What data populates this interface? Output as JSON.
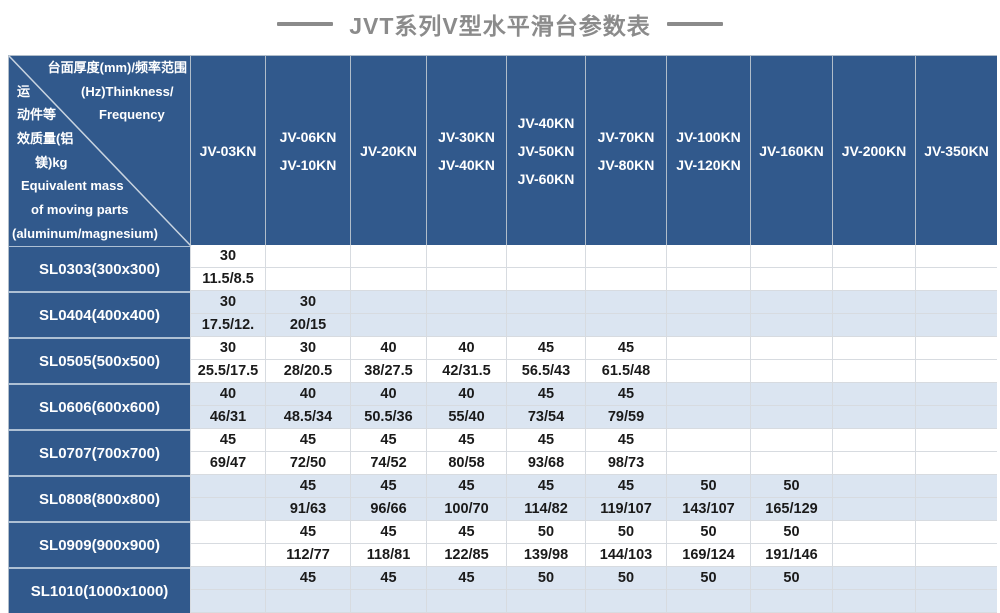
{
  "title": {
    "text": "JVT系列V型水平滑台参数表"
  },
  "colors": {
    "header_blue": "#31598c",
    "row_alt_blue": "#dbe5f1",
    "grid_line": "#d7dbe0",
    "title_gray": "#8b8b8b",
    "text_dark": "#1a1a1a"
  },
  "table": {
    "corner_lines": [
      {
        "left": "",
        "right": "台面厚度(mm)/频率范围"
      },
      {
        "left": "运",
        "right": "(Hz)Thinkness/"
      },
      {
        "left": "动件等",
        "right": "Frequency"
      },
      {
        "left": "效质量(铝",
        "right": ""
      },
      {
        "left": "镁)kg",
        "right": ""
      },
      {
        "left": "Equivalent mass",
        "right": ""
      },
      {
        "left": "of moving parts",
        "right": ""
      },
      {
        "left": "(aluminum/magnesium)",
        "right": ""
      }
    ],
    "columns": [
      {
        "labels": [
          "JV-03KN"
        ]
      },
      {
        "labels": [
          "JV-06KN",
          "JV-10KN"
        ]
      },
      {
        "labels": [
          "JV-20KN"
        ]
      },
      {
        "labels": [
          "JV-30KN",
          "JV-40KN"
        ]
      },
      {
        "labels": [
          "JV-40KN",
          "JV-50KN",
          "JV-60KN"
        ]
      },
      {
        "labels": [
          "JV-70KN",
          "JV-80KN"
        ]
      },
      {
        "labels": [
          "JV-100KN",
          "JV-120KN"
        ]
      },
      {
        "labels": [
          "JV-160KN"
        ]
      },
      {
        "labels": [
          "JV-200KN"
        ]
      },
      {
        "labels": [
          "JV-350KN"
        ]
      }
    ],
    "rows": [
      {
        "label": "SL0303(300x300)",
        "cells": [
          [
            "30",
            "11.5/8.5"
          ],
          null,
          null,
          null,
          null,
          null,
          null,
          null,
          null,
          null
        ]
      },
      {
        "label": "SL0404(400x400)",
        "cells": [
          [
            "30",
            "17.5/12."
          ],
          [
            "30",
            "20/15"
          ],
          null,
          null,
          null,
          null,
          null,
          null,
          null,
          null
        ]
      },
      {
        "label": "SL0505(500x500)",
        "cells": [
          [
            "30",
            "25.5/17.5"
          ],
          [
            "30",
            "28/20.5"
          ],
          [
            "40",
            "38/27.5"
          ],
          [
            "40",
            "42/31.5"
          ],
          [
            "45",
            "56.5/43"
          ],
          [
            "45",
            "61.5/48"
          ],
          null,
          null,
          null,
          null
        ]
      },
      {
        "label": "SL0606(600x600)",
        "cells": [
          [
            "40",
            "46/31"
          ],
          [
            "40",
            "48.5/34"
          ],
          [
            "40",
            "50.5/36"
          ],
          [
            "40",
            "55/40"
          ],
          [
            "45",
            "73/54"
          ],
          [
            "45",
            "79/59"
          ],
          null,
          null,
          null,
          null
        ]
      },
      {
        "label": "SL0707(700x700)",
        "cells": [
          [
            "45",
            "69/47"
          ],
          [
            "45",
            "72/50"
          ],
          [
            "45",
            "74/52"
          ],
          [
            "45",
            "80/58"
          ],
          [
            "45",
            "93/68"
          ],
          [
            "45",
            "98/73"
          ],
          null,
          null,
          null,
          null
        ]
      },
      {
        "label": "SL0808(800x800)",
        "cells": [
          null,
          [
            "45",
            "91/63"
          ],
          [
            "45",
            "96/66"
          ],
          [
            "45",
            "100/70"
          ],
          [
            "45",
            "114/82"
          ],
          [
            "45",
            "119/107"
          ],
          [
            "50",
            "143/107"
          ],
          [
            "50",
            "165/129"
          ],
          null,
          null
        ]
      },
      {
        "label": "SL0909(900x900)",
        "cells": [
          null,
          [
            "45",
            "112/77"
          ],
          [
            "45",
            "118/81"
          ],
          [
            "45",
            "122/85"
          ],
          [
            "50",
            "139/98"
          ],
          [
            "50",
            "144/103"
          ],
          [
            "50",
            "169/124"
          ],
          [
            "50",
            "191/146"
          ],
          null,
          null
        ]
      },
      {
        "label": "SL1010(1000x1000)",
        "cells": [
          null,
          [
            "45",
            ""
          ],
          [
            "45",
            ""
          ],
          [
            "45",
            ""
          ],
          [
            "50",
            ""
          ],
          [
            "50",
            ""
          ],
          [
            "50",
            ""
          ],
          [
            "50",
            ""
          ],
          null,
          null
        ]
      }
    ]
  }
}
